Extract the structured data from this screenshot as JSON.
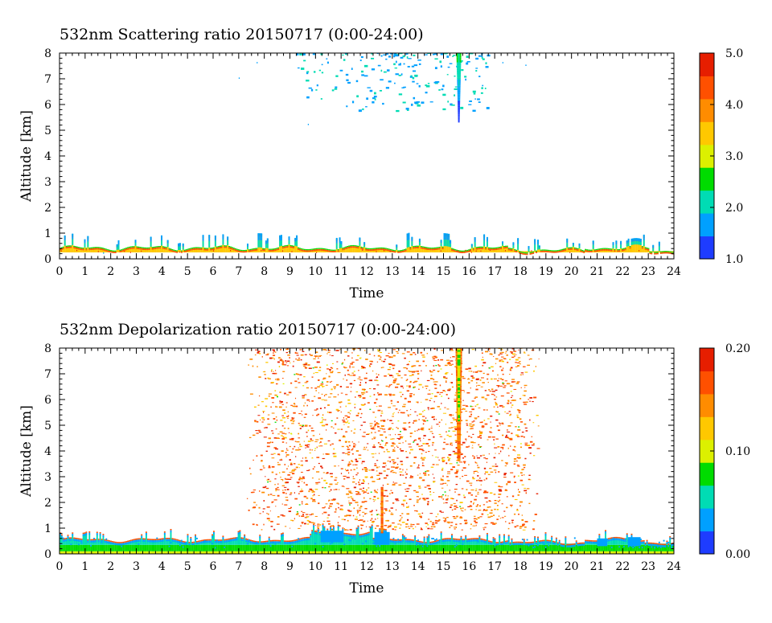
{
  "chart_data": [
    {
      "type": "heatmap",
      "title": "532nm Scattering ratio  20150717 (0:00-24:00)",
      "xlabel": "Time",
      "ylabel": "Altitude [km]",
      "xlim": [
        0,
        24
      ],
      "ylim": [
        0,
        8
      ],
      "xticks": [
        "0",
        "1",
        "2",
        "3",
        "4",
        "5",
        "6",
        "7",
        "8",
        "9",
        "10",
        "11",
        "12",
        "13",
        "14",
        "15",
        "16",
        "17",
        "18",
        "19",
        "20",
        "21",
        "22",
        "23",
        "24"
      ],
      "yticks": [
        "0",
        "1",
        "2",
        "3",
        "4",
        "5",
        "6",
        "7",
        "8"
      ],
      "colorbar": {
        "range": [
          1.0,
          5.0
        ],
        "tick_labels": [
          "1.0",
          "2.0",
          "3.0",
          "4.0",
          "5.0"
        ],
        "tick_values": [
          1.0,
          2.0,
          3.0,
          4.0,
          5.0
        ],
        "colors": [
          "#1e3cff",
          "#00a0ff",
          "#00dcb4",
          "#00dc00",
          "#dcf000",
          "#ffc800",
          "#ff8c00",
          "#ff5000",
          "#e61e00"
        ]
      },
      "features": [
        {
          "name": "boundary layer aerosol",
          "x_range": [
            0,
            24
          ],
          "altitude_km": [
            0.2,
            0.7
          ],
          "peak_altitude_km": 1.0,
          "values_range": [
            1.0,
            5.0
          ]
        },
        {
          "name": "high cloud",
          "x_range": [
            9.0,
            17.0
          ],
          "altitude_km": [
            5.5,
            8.0
          ],
          "values_range": [
            1.0,
            2.0
          ]
        },
        {
          "name": "cloud column",
          "time_h": 15.6,
          "altitude_km": [
            5.3,
            8.0
          ],
          "values_range": [
            1.5,
            3.0
          ]
        }
      ]
    },
    {
      "type": "heatmap",
      "title": "532nm Depolarization ratio  20150717 (0:00-24:00)",
      "xlabel": "Time",
      "ylabel": "Altitude [km]",
      "xlim": [
        0,
        24
      ],
      "ylim": [
        0,
        8
      ],
      "xticks": [
        "0",
        "1",
        "2",
        "3",
        "4",
        "5",
        "6",
        "7",
        "8",
        "9",
        "10",
        "11",
        "12",
        "13",
        "14",
        "15",
        "16",
        "17",
        "18",
        "19",
        "20",
        "21",
        "22",
        "23",
        "24"
      ],
      "yticks": [
        "0",
        "1",
        "2",
        "3",
        "4",
        "5",
        "6",
        "7",
        "8"
      ],
      "colorbar": {
        "range": [
          0.0,
          0.2
        ],
        "tick_labels": [
          "0.00",
          "0.10",
          "0.20"
        ],
        "tick_values": [
          0.0,
          0.1,
          0.2
        ],
        "colors": [
          "#1e3cff",
          "#00a0ff",
          "#00dcb4",
          "#00dc00",
          "#dcf000",
          "#ffc800",
          "#ff8c00",
          "#ff5000",
          "#e61e00"
        ]
      },
      "features": [
        {
          "name": "boundary layer",
          "x_range": [
            0,
            24
          ],
          "altitude_km": [
            0.0,
            0.8
          ],
          "values_range": [
            0.02,
            0.1
          ]
        },
        {
          "name": "scattered noise",
          "x_range": [
            7.5,
            18.5
          ],
          "altitude_km": [
            1.0,
            8.0
          ],
          "values_range": [
            0.15,
            0.2
          ]
        },
        {
          "name": "cloud column",
          "time_h": 15.6,
          "altitude_km": [
            3.6,
            8.0
          ],
          "values_range": [
            0.08,
            0.2
          ]
        },
        {
          "name": "column",
          "time_h": 12.6,
          "altitude_km": [
            0.8,
            2.5
          ],
          "values_range": [
            0.15,
            0.2
          ]
        }
      ]
    }
  ]
}
